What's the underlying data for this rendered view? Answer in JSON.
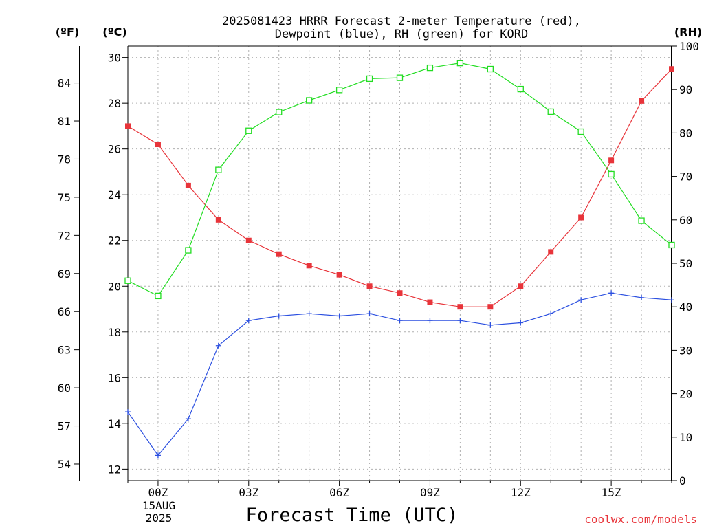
{
  "title_line1": "2025081423 HRRR Forecast 2-meter Temperature (red),",
  "title_line2": "Dewpoint (blue), RH (green) for KORD",
  "unit_f": "(ºF)",
  "unit_c": "(ºC)",
  "unit_rh": "(RH)",
  "x_title": "Forecast Time (UTC)",
  "date_line1": "15AUG",
  "date_line2": "2025",
  "credit": "coolwx.com/models",
  "colors": {
    "temperature": "#e8343a",
    "dewpoint": "#2b4fe0",
    "rh": "#22dd22",
    "credit": "#e8343a"
  },
  "chart_data": {
    "type": "line",
    "x_labels": [
      "00Z",
      "03Z",
      "06Z",
      "09Z",
      "12Z",
      "15Z"
    ],
    "x_hours": [
      -1,
      0,
      1,
      2,
      3,
      4,
      5,
      6,
      7,
      8,
      9,
      10,
      11,
      12,
      13,
      14,
      15,
      16,
      17
    ],
    "xlim": [
      -1,
      17
    ],
    "celsius_ticks": [
      12,
      14,
      16,
      18,
      20,
      22,
      24,
      26,
      28,
      30
    ],
    "fahrenheit_ticks": [
      54,
      57,
      60,
      63,
      66,
      69,
      72,
      75,
      78,
      81,
      84
    ],
    "rh_ticks": [
      0,
      10,
      20,
      30,
      40,
      50,
      60,
      70,
      80,
      90,
      100
    ],
    "ylim_c": [
      11.5,
      30.5
    ],
    "ylim_rh": [
      0,
      100
    ],
    "grid": true,
    "series": [
      {
        "name": "Temperature",
        "axis": "celsius",
        "marker": "filled-square",
        "values": [
          27.0,
          26.2,
          24.4,
          22.9,
          22.0,
          21.4,
          20.9,
          20.5,
          20.0,
          19.7,
          19.3,
          19.1,
          19.1,
          20.0,
          21.5,
          23.0,
          25.5,
          28.1,
          29.5
        ]
      },
      {
        "name": "Dewpoint",
        "axis": "celsius",
        "marker": "plus",
        "values": [
          14.5,
          12.6,
          14.2,
          17.4,
          18.5,
          18.7,
          18.8,
          18.7,
          18.8,
          18.5,
          18.5,
          18.5,
          18.3,
          18.4,
          18.8,
          19.4,
          19.7,
          19.5,
          19.4
        ]
      },
      {
        "name": "RH",
        "axis": "rh",
        "marker": "open-square",
        "values": [
          46,
          42.5,
          53,
          71.5,
          80.5,
          84.8,
          87.5,
          89.9,
          92.5,
          92.7,
          95,
          96.1,
          94.7,
          90.1,
          84.9,
          80.3,
          70.5,
          59.8,
          54.2
        ]
      }
    ]
  }
}
